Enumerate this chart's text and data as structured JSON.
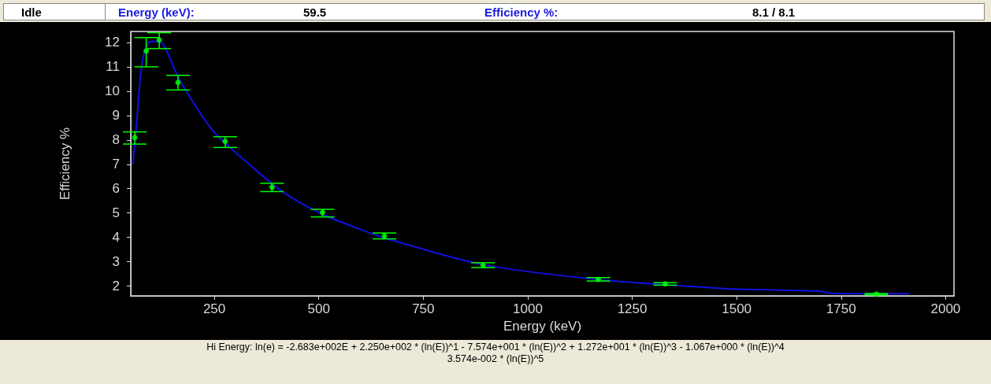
{
  "chart_data": {
    "type": "scatter",
    "xlabel": "Energy (keV)",
    "ylabel": "Efficiency %",
    "annotations": [
      "Idle",
      "Energy (keV):",
      "59.5",
      "Efficiency %:",
      "8.1 / 8.1",
      "Hi Energy: ln(e) = -2.683e+002E + 2.250e+002 * (ln(E))^1 - 7.574e+001 * (ln(E))^2 + 1.272e+001 * (ln(E))^3 - 1.067e+000 * (ln(E))^4\n3.574e-002 * (ln(E))^5"
    ],
    "xlim": [
      50,
      2020
    ],
    "xticks": [
      250,
      500,
      750,
      1000,
      1250,
      1500,
      1750,
      2000
    ],
    "ylim": [
      1.6,
      12.45
    ],
    "yticks": [
      2,
      3,
      4,
      5,
      6,
      7,
      8,
      9,
      10,
      11,
      12
    ],
    "grid": false,
    "marker": "circle",
    "series": [
      {
        "color": "#00ff00",
        "x": [
          59.5,
          87,
          118,
          163,
          276,
          388,
          509,
          657,
          893,
          1169,
          1329,
          1834
        ],
        "values": [
          8.1,
          11.65,
          12.1,
          10.36,
          7.94,
          6.06,
          5.02,
          4.06,
          2.86,
          2.28,
          2.09,
          1.67
        ],
        "errors": [
          [
            7.83,
            8.33
          ],
          [
            11.0,
            12.2
          ],
          [
            11.75,
            12.4
          ],
          [
            10.05,
            10.65
          ],
          [
            7.69,
            8.13
          ],
          [
            5.88,
            6.22
          ],
          [
            4.84,
            5.15
          ],
          [
            3.94,
            4.18
          ],
          [
            2.76,
            2.96
          ],
          [
            2.21,
            2.35
          ],
          [
            2.04,
            2.14
          ],
          [
            1.64,
            1.7
          ]
        ]
      },
      {
        "type": "line",
        "color": "#1010e0",
        "marker": "none",
        "line_style": "solid",
        "x": [
          55,
          64,
          77,
          92,
          105,
          127,
          165,
          215,
          252,
          328,
          416,
          509,
          604,
          657,
          893,
          1169,
          1397,
          1499,
          1699,
          1730,
          1913
        ],
        "values": [
          7.0,
          8.7,
          11.16,
          11.98,
          12.05,
          11.93,
          10.53,
          9.13,
          8.27,
          7.08,
          5.84,
          4.95,
          4.3,
          3.98,
          2.88,
          2.27,
          1.98,
          1.88,
          1.79,
          1.7,
          1.69
        ]
      }
    ]
  }
}
